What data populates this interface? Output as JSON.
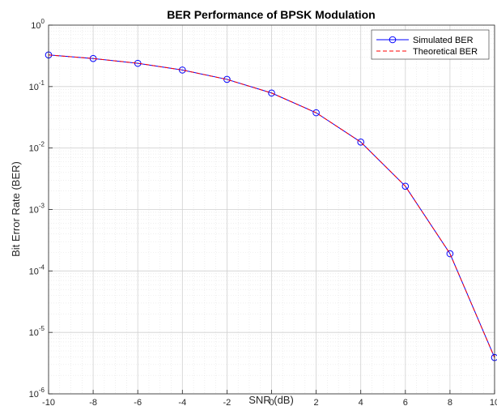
{
  "chart_data": {
    "type": "line",
    "title": "BER Performance of BPSK Modulation",
    "xlabel": "SNR (dB)",
    "ylabel": "Bit Error Rate (BER)",
    "xlim": [
      -10,
      10
    ],
    "ylim": [
      1e-06,
      1
    ],
    "y_scale": "log",
    "grid": true,
    "minor_grid": true,
    "legend_position": "top-right",
    "x_ticks": [
      -10,
      -8,
      -6,
      -4,
      -2,
      0,
      2,
      4,
      6,
      8,
      10
    ],
    "y_tick_exponents": [
      -6,
      -5,
      -4,
      -3,
      -2,
      -1,
      0
    ],
    "y_tick_base": "10",
    "x": [
      -10,
      -8,
      -6,
      -4,
      -2,
      0,
      2,
      4,
      6,
      8,
      10
    ],
    "series": [
      {
        "name": "Simulated BER",
        "color": "#0000ff",
        "line_style": "solid",
        "marker": "circle",
        "values": [
          0.327,
          0.286,
          0.239,
          0.186,
          0.131,
          0.0786,
          0.0375,
          0.0125,
          0.00239,
          0.000191,
          3.9e-06
        ]
      },
      {
        "name": "Theoretical BER",
        "color": "#ff0000",
        "line_style": "dashed",
        "marker": "none",
        "values": [
          0.327,
          0.286,
          0.2398,
          0.186,
          0.1306,
          0.0786,
          0.0375,
          0.0125,
          0.00239,
          0.000191,
          3.87e-06
        ]
      }
    ]
  }
}
